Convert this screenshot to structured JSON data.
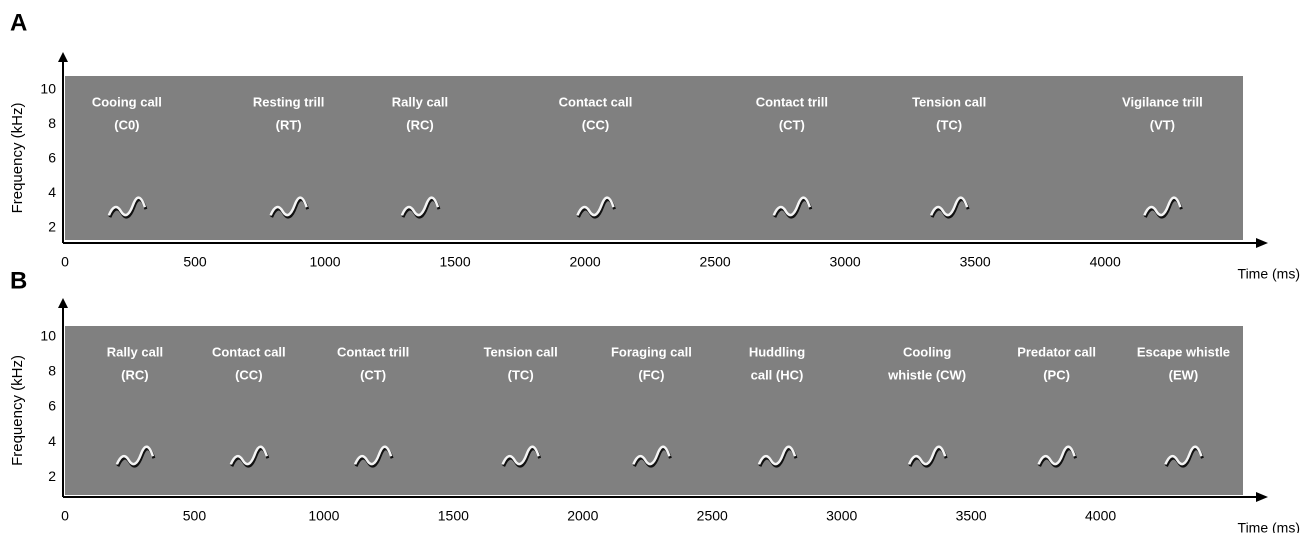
{
  "chart_data": [
    {
      "type": "spectrogram",
      "panel": "A",
      "y_label": "Frequency (kHz)",
      "x_label": "Time (ms)",
      "xlim": [
        0,
        4530
      ],
      "xticks": [
        0,
        500,
        1000,
        1500,
        2000,
        2500,
        3000,
        3500,
        4000
      ],
      "ylim": [
        1.3,
        10.8
      ],
      "yticks": [
        2,
        4,
        6,
        8,
        10
      ],
      "color": "#808080",
      "annotations": [
        {
          "label": "Cooing call",
          "code": "(C0)",
          "x": 238
        },
        {
          "label": "Resting trill",
          "code": "(RT)",
          "x": 860
        },
        {
          "label": "Rally call",
          "code": "(RC)",
          "x": 1365
        },
        {
          "label": "Contact call",
          "code": "(CC)",
          "x": 2040
        },
        {
          "label": "Contact trill",
          "code": "(CT)",
          "x": 2795
        },
        {
          "label": "Tension call",
          "code": "(TC)",
          "x": 3400
        },
        {
          "label": "Vigilance trill",
          "code": "(VT)",
          "x": 4220
        }
      ]
    },
    {
      "type": "spectrogram",
      "panel": "B",
      "y_label": "Frequency (kHz)",
      "x_label": "Time (ms)",
      "xlim": [
        0,
        4550
      ],
      "xticks": [
        0,
        500,
        1000,
        1500,
        2000,
        2500,
        3000,
        3500,
        4000
      ],
      "ylim": [
        1.0,
        10.6
      ],
      "yticks": [
        2,
        4,
        6,
        8,
        10
      ],
      "color": "#808080",
      "annotations": [
        {
          "label": "Rally call",
          "code": "(RC)",
          "x": 270
        },
        {
          "label": "Contact call",
          "code": "(CC)",
          "x": 710
        },
        {
          "label": "Contact trill",
          "code": "(CT)",
          "x": 1190
        },
        {
          "label": "Tension call",
          "code": "(TC)",
          "x": 1760
        },
        {
          "label": "Foraging call",
          "code": "(FC)",
          "x": 2265
        },
        {
          "label": "Huddling",
          "code": "call  (HC)",
          "x": 2750
        },
        {
          "label": "Cooling",
          "code": "whistle  (CW)",
          "x": 3330
        },
        {
          "label": "Predator call",
          "code": "(PC)",
          "x": 3830
        },
        {
          "label": "Escape whistle",
          "code": "(EW)",
          "x": 4320
        }
      ]
    }
  ]
}
